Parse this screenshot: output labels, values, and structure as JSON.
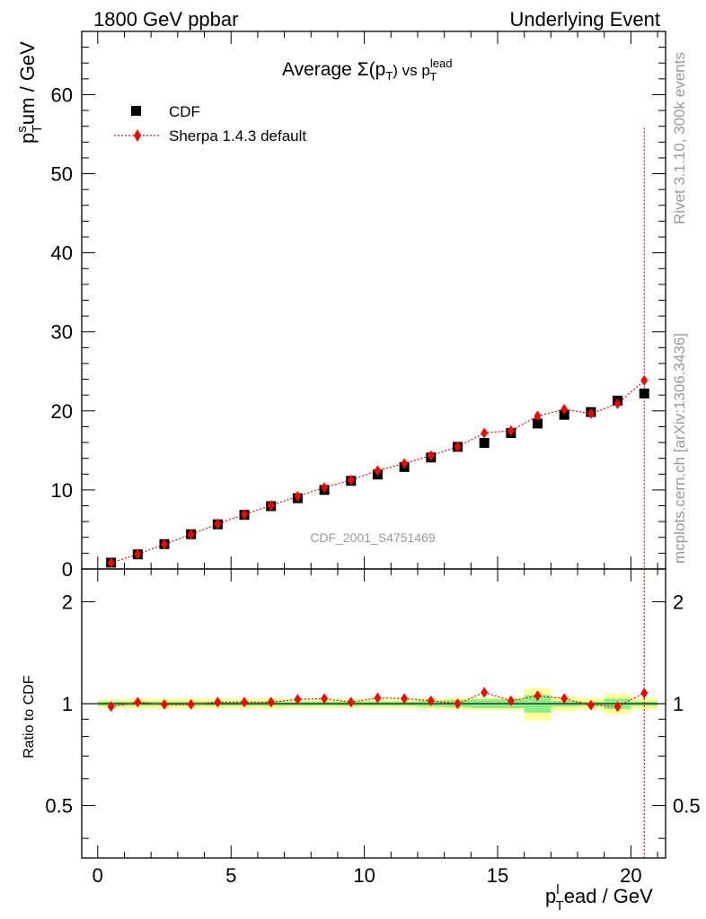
{
  "header": {
    "left": "1800 GeV ppbar",
    "right": "Underlying Event"
  },
  "side_text": {
    "rivet": "Rivet 3.1.10,  300k events",
    "mcplots": "mcplots.cern.ch [arXiv:1306.3436]"
  },
  "watermark": "CDF_2001_S4751469",
  "chart_data": [
    {
      "type": "scatter",
      "title": {
        "main": "Average Σ(p",
        "sub": "T",
        "mid": ") vs p",
        "sub2": "T",
        "sup2": "lead"
      },
      "ylabel": {
        "main": "p",
        "sub": "T",
        "sup": "s",
        "rest": "um / GeV"
      },
      "xlim": [
        -0.6,
        21.3
      ],
      "ylim": [
        0,
        68
      ],
      "x_ticks": [
        0,
        5,
        10,
        15,
        20
      ],
      "y_ticks": [
        0,
        10,
        20,
        30,
        40,
        50,
        60
      ],
      "legend": {
        "position": "top-left"
      },
      "series": [
        {
          "name": "CDF",
          "color": "#000000",
          "marker": "square",
          "x": [
            0.5,
            1.5,
            2.5,
            3.5,
            4.5,
            5.5,
            6.5,
            7.5,
            8.5,
            9.5,
            10.5,
            11.5,
            12.5,
            13.5,
            14.5,
            15.5,
            16.5,
            17.5,
            18.5,
            19.5,
            20.5
          ],
          "y": [
            0.8,
            1.85,
            3.15,
            4.4,
            5.65,
            6.85,
            7.95,
            8.95,
            10.0,
            11.15,
            11.95,
            12.9,
            14.1,
            15.45,
            15.95,
            17.2,
            18.4,
            19.5,
            19.85,
            21.3,
            22.2
          ]
        },
        {
          "name": "Sherpa 1.4.3 default",
          "color": "#ff0000",
          "marker": "diamond",
          "line": "dotted",
          "x": [
            0.5,
            1.5,
            2.5,
            3.5,
            4.5,
            5.5,
            6.5,
            7.5,
            8.5,
            9.5,
            10.5,
            11.5,
            12.5,
            13.5,
            14.5,
            15.5,
            16.5,
            17.5,
            18.5,
            19.5,
            20.5
          ],
          "y": [
            0.78,
            1.87,
            3.12,
            4.37,
            5.7,
            6.9,
            8.03,
            9.2,
            10.3,
            11.25,
            12.45,
            13.35,
            14.35,
            15.45,
            17.2,
            17.5,
            19.35,
            20.2,
            19.65,
            20.9,
            23.85
          ],
          "last_error_high": 55.8
        }
      ]
    },
    {
      "type": "scatter",
      "ylabel": "Ratio to CDF",
      "scale": "log",
      "ylim": [
        0.35,
        2.5
      ],
      "xlim": [
        -0.6,
        21.3
      ],
      "xlabel": {
        "main": "p",
        "sub": "T",
        "sup": "l",
        "rest": "ead / GeV"
      },
      "x_ticks": [
        0,
        5,
        10,
        15,
        20
      ],
      "y_ticks": [
        0.5,
        1,
        2
      ],
      "reference": 1,
      "band_stat": {
        "color": "#88ee88",
        "lo": [
          0.985,
          0.985,
          0.985,
          0.985,
          0.985,
          0.985,
          0.985,
          0.985,
          0.985,
          0.985,
          0.985,
          0.985,
          0.98,
          0.975,
          0.97,
          0.97,
          0.94,
          0.98,
          0.985,
          0.965,
          0.985
        ],
        "hi": [
          1.015,
          1.015,
          1.015,
          1.015,
          1.015,
          1.015,
          1.015,
          1.015,
          1.015,
          1.015,
          1.015,
          1.015,
          1.02,
          1.025,
          1.03,
          1.03,
          1.06,
          1.02,
          1.015,
          1.035,
          1.015
        ]
      },
      "band_total": {
        "color": "#ffff99",
        "lo": [
          0.97,
          0.965,
          0.965,
          0.965,
          0.965,
          0.965,
          0.965,
          0.97,
          0.97,
          0.97,
          0.97,
          0.97,
          0.965,
          0.96,
          0.955,
          0.955,
          0.89,
          0.95,
          0.96,
          0.93,
          0.96
        ],
        "hi": [
          1.03,
          1.035,
          1.035,
          1.035,
          1.035,
          1.035,
          1.035,
          1.03,
          1.03,
          1.03,
          1.03,
          1.03,
          1.035,
          1.04,
          1.045,
          1.045,
          1.11,
          1.05,
          1.04,
          1.07,
          1.04
        ]
      },
      "series": [
        {
          "name": "Sherpa 1.4.3 default",
          "color": "#ff0000",
          "marker": "diamond",
          "x": [
            0.5,
            1.5,
            2.5,
            3.5,
            4.5,
            5.5,
            6.5,
            7.5,
            8.5,
            9.5,
            10.5,
            11.5,
            12.5,
            13.5,
            14.5,
            15.5,
            16.5,
            17.5,
            18.5,
            19.5,
            20.5
          ],
          "y": [
            0.98,
            1.01,
            0.995,
            0.995,
            1.01,
            1.01,
            1.01,
            1.03,
            1.035,
            1.01,
            1.04,
            1.035,
            1.02,
            1.0,
            1.08,
            1.02,
            1.055,
            1.035,
            0.99,
            0.98,
            1.075
          ]
        }
      ]
    }
  ]
}
